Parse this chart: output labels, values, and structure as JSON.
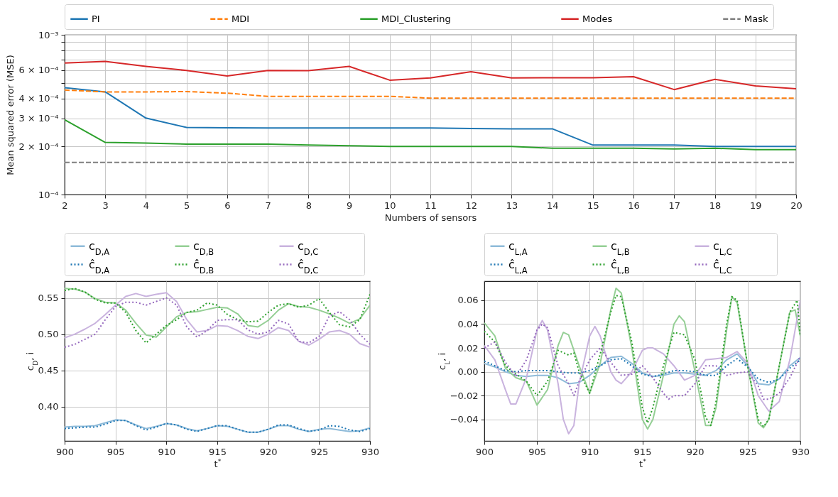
{
  "chart_data": [
    {
      "type": "line",
      "xlabel": "Numbers of sensors",
      "ylabel": "Mean squared error (MSE)",
      "log": "y",
      "grid": true,
      "legend": "top",
      "x": [
        2,
        3,
        4,
        5,
        6,
        7,
        8,
        9,
        10,
        11,
        12,
        13,
        14,
        15,
        16,
        17,
        18,
        19,
        20
      ],
      "xlim": [
        2,
        20
      ],
      "xticks": [
        2,
        3,
        4,
        5,
        6,
        7,
        8,
        9,
        10,
        11,
        12,
        13,
        14,
        15,
        16,
        17,
        18,
        19,
        20
      ],
      "ylim": [
        0.0001,
        0.001
      ],
      "yticks": [
        {
          "value": 0.0001,
          "label": "10⁻⁴"
        },
        {
          "value": 0.0002,
          "label": "2 × 10⁻⁴"
        },
        {
          "value": 0.0003,
          "label": "3 × 10⁻⁴"
        },
        {
          "value": 0.0004,
          "label": "4 × 10⁻⁴"
        },
        {
          "value": 0.0005,
          "label": null
        },
        {
          "value": 0.0006,
          "label": "6 × 10⁻⁴"
        },
        {
          "value": 0.0007,
          "label": null
        },
        {
          "value": 0.0008,
          "label": null
        },
        {
          "value": 0.0009,
          "label": null
        },
        {
          "value": 0.001,
          "label": "10⁻³"
        }
      ],
      "series": [
        {
          "name": "PI",
          "color": "#1f77b4",
          "line_style": "solid",
          "values": [
            0.000467,
            0.000439,
            0.000301,
            0.000263,
            0.000262,
            0.000261,
            0.000261,
            0.000261,
            0.000261,
            0.000261,
            0.000259,
            0.000258,
            0.000258,
            0.000204,
            0.000204,
            0.000204,
            0.0002,
            0.0002,
            0.0002
          ]
        },
        {
          "name": "MDI",
          "color": "#ff7f0e",
          "line_style": "dashed",
          "values": [
            0.000451,
            0.000439,
            0.000439,
            0.000441,
            0.000431,
            0.000412,
            0.000412,
            0.000412,
            0.000412,
            0.000401,
            0.000401,
            0.000401,
            0.000401,
            0.000401,
            0.000401,
            0.000401,
            0.000401,
            0.000401,
            0.000401
          ]
        },
        {
          "name": "MDI_Clustering",
          "color": "#2ca02c",
          "line_style": "solid",
          "values": [
            0.000294,
            0.000212,
            0.00021,
            0.000207,
            0.000207,
            0.000207,
            0.000204,
            0.000202,
            0.0002,
            0.0002,
            0.0002,
            0.0002,
            0.000195,
            0.000195,
            0.000195,
            0.000193,
            0.000195,
            0.000191,
            0.000191
          ]
        },
        {
          "name": "Modes",
          "color": "#d62728",
          "line_style": "solid",
          "values": [
            0.000665,
            0.000681,
            0.000634,
            0.000598,
            0.000553,
            0.000598,
            0.000597,
            0.000634,
            0.00052,
            0.000537,
            0.000587,
            0.000537,
            0.000539,
            0.000539,
            0.000547,
            0.000454,
            0.000526,
            0.000479,
            0.000459
          ]
        },
        {
          "name": "Mask",
          "color": "#7f7f7f",
          "line_style": "dashed",
          "values": [
            0.000159,
            0.000159,
            0.000159,
            0.000159,
            0.000159,
            0.000159,
            0.000159,
            0.000159,
            0.000159,
            0.000159,
            0.000159,
            0.000159,
            0.000159,
            0.000159,
            0.000159,
            0.000159,
            0.000159,
            0.000159,
            0.000159
          ]
        }
      ]
    },
    {
      "type": "line",
      "xlabel": "t$^{*}$",
      "ylabel": "c$_{D}$, i",
      "grid": true,
      "legend": "top",
      "x": [
        900,
        901,
        902,
        903,
        904,
        905,
        906,
        907,
        908,
        909,
        910,
        911,
        912,
        913,
        914,
        915,
        916,
        917,
        918,
        919,
        920,
        921,
        922,
        923,
        924,
        925,
        926,
        927,
        928,
        929,
        930
      ],
      "xlim": [
        900,
        930
      ],
      "xticks": [
        900,
        905,
        910,
        915,
        920,
        925,
        930
      ],
      "ylim": [
        0.353,
        0.573
      ],
      "yticks": [
        {
          "value": 0.4,
          "label": "0.40"
        },
        {
          "value": 0.45,
          "label": "0.45"
        },
        {
          "value": 0.5,
          "label": "0.50"
        },
        {
          "value": 0.55,
          "label": "0.55"
        }
      ],
      "series": [
        {
          "name": "c$_{D,A}$",
          "color": "#8fbbd9",
          "line_style": "solid",
          "values": [
            0.372,
            0.373,
            0.373,
            0.374,
            0.378,
            0.382,
            0.381,
            0.375,
            0.37,
            0.373,
            0.377,
            0.375,
            0.37,
            0.367,
            0.37,
            0.374,
            0.373,
            0.369,
            0.365,
            0.365,
            0.369,
            0.374,
            0.374,
            0.369,
            0.366,
            0.369,
            0.37,
            0.368,
            0.366,
            0.367,
            0.371
          ]
        },
        {
          "name": "c$_{D,B}$",
          "color": "#95cf95",
          "line_style": "solid",
          "values": [
            0.563,
            0.562,
            0.558,
            0.549,
            0.544,
            0.543,
            0.533,
            0.515,
            0.499,
            0.496,
            0.51,
            0.524,
            0.53,
            0.531,
            0.534,
            0.537,
            0.536,
            0.528,
            0.512,
            0.51,
            0.519,
            0.533,
            0.542,
            0.538,
            0.537,
            0.533,
            0.528,
            0.522,
            0.515,
            0.521,
            0.54
          ]
        },
        {
          "name": "c$_{D,C}$",
          "color": "#c9b3de",
          "line_style": "solid",
          "values": [
            0.495,
            0.5,
            0.507,
            0.515,
            0.527,
            0.54,
            0.552,
            0.556,
            0.552,
            0.555,
            0.557,
            0.545,
            0.52,
            0.503,
            0.505,
            0.512,
            0.511,
            0.505,
            0.497,
            0.494,
            0.5,
            0.509,
            0.505,
            0.49,
            0.485,
            0.493,
            0.503,
            0.505,
            0.5,
            0.487,
            0.482
          ]
        },
        {
          "name": "ĉ$_{D,A}$",
          "color": "#1f77b4",
          "line_style": "dotted",
          "values": [
            0.37,
            0.371,
            0.372,
            0.372,
            0.376,
            0.381,
            0.381,
            0.374,
            0.368,
            0.372,
            0.377,
            0.375,
            0.369,
            0.366,
            0.37,
            0.374,
            0.374,
            0.369,
            0.365,
            0.365,
            0.369,
            0.375,
            0.375,
            0.37,
            0.366,
            0.368,
            0.374,
            0.373,
            0.368,
            0.366,
            0.37
          ]
        },
        {
          "name": "ĉ$_{D,B}$",
          "color": "#2ca02c",
          "line_style": "dotted",
          "values": [
            0.56,
            0.563,
            0.558,
            0.548,
            0.543,
            0.543,
            0.53,
            0.505,
            0.488,
            0.5,
            0.512,
            0.52,
            0.53,
            0.533,
            0.543,
            0.54,
            0.527,
            0.52,
            0.517,
            0.518,
            0.53,
            0.54,
            0.542,
            0.537,
            0.54,
            0.549,
            0.53,
            0.513,
            0.51,
            0.52,
            0.555
          ]
        },
        {
          "name": "ĉ$_{D,C}$",
          "color": "#9467bd",
          "line_style": "dotted",
          "values": [
            0.482,
            0.486,
            0.493,
            0.5,
            0.52,
            0.538,
            0.544,
            0.544,
            0.54,
            0.545,
            0.55,
            0.54,
            0.51,
            0.496,
            0.505,
            0.519,
            0.52,
            0.52,
            0.506,
            0.5,
            0.503,
            0.519,
            0.514,
            0.49,
            0.488,
            0.497,
            0.525,
            0.531,
            0.52,
            0.5,
            0.486
          ]
        }
      ]
    },
    {
      "type": "line",
      "xlabel": "t$^{*}$",
      "ylabel": "c$_{L}$, i",
      "grid": true,
      "legend": "top",
      "x": [
        900,
        901,
        902,
        903,
        904,
        905,
        906,
        907,
        908,
        909,
        910,
        911,
        912,
        913,
        914,
        915,
        916,
        917,
        918,
        919,
        920,
        921,
        922,
        923,
        924,
        925,
        926,
        927,
        928,
        929,
        930
      ],
      "xlim": [
        900,
        930
      ],
      "xticks": [
        900,
        905,
        910,
        915,
        920,
        925,
        930
      ],
      "ylim": [
        -0.058,
        0.076
      ],
      "yticks": [
        {
          "value": -0.04,
          "label": "−0.04"
        },
        {
          "value": -0.02,
          "label": "−0.02"
        },
        {
          "value": 0,
          "label": "0.00"
        },
        {
          "value": 0.02,
          "label": "0.02"
        },
        {
          "value": 0.04,
          "label": "0.04"
        },
        {
          "value": 0.06,
          "label": "0.06"
        }
      ],
      "series": [
        {
          "name": "c$_{L,A}$",
          "color": "#8fbbd9",
          "line_style": "solid",
          "values": [
            0.007,
            0.004,
            0.0,
            -0.003,
            -0.004,
            -0.003,
            -0.003,
            -0.005,
            -0.01,
            -0.009,
            -0.003,
            0.005,
            0.012,
            0.013,
            0.007,
            -0.001,
            -0.004,
            -0.003,
            -0.001,
            -0.001,
            -0.002,
            -0.003,
            0.001,
            0.01,
            0.015,
            0.005,
            -0.01,
            -0.011,
            -0.006,
            0.005,
            0.012
          ]
        },
        {
          "name": "c$_{L,B}$",
          "color": "#95cf95",
          "line_style": "solid",
          "x": [
            900,
            901,
            902,
            903,
            904,
            905,
            906,
            907,
            907.5,
            908,
            909,
            910,
            911,
            912,
            912.5,
            913,
            914,
            915,
            915.5,
            916,
            917,
            918,
            918.5,
            919,
            920,
            921,
            921.5,
            922,
            923,
            923.5,
            924,
            925,
            926,
            926.5,
            927,
            928,
            929,
            929.5,
            930
          ],
          "values": [
            0.041,
            0.03,
            0.003,
            -0.005,
            -0.008,
            -0.028,
            -0.015,
            0.022,
            0.033,
            0.031,
            0.005,
            -0.018,
            0.007,
            0.052,
            0.07,
            0.066,
            0.02,
            -0.04,
            -0.048,
            -0.04,
            -0.003,
            0.04,
            0.047,
            0.042,
            0.0,
            -0.045,
            -0.045,
            -0.03,
            0.035,
            0.063,
            0.058,
            0.005,
            -0.043,
            -0.047,
            -0.04,
            0.005,
            0.05,
            0.052,
            0.03
          ]
        },
        {
          "name": "c$_{L,C}$",
          "color": "#c9b3de",
          "line_style": "solid",
          "x": [
            900,
            901,
            902,
            902.5,
            903,
            904,
            905,
            905.5,
            906,
            907,
            907.5,
            908,
            908.5,
            909,
            910,
            910.5,
            911,
            912,
            912.5,
            913,
            914,
            915,
            915.5,
            916,
            917,
            918,
            919,
            920,
            921,
            922,
            923,
            924,
            925,
            926,
            927,
            928,
            929,
            930
          ],
          "values": [
            0.022,
            0.01,
            -0.015,
            -0.027,
            -0.027,
            -0.005,
            0.035,
            0.043,
            0.035,
            -0.01,
            -0.04,
            -0.052,
            -0.045,
            -0.01,
            0.03,
            0.038,
            0.03,
            0.0,
            -0.007,
            -0.01,
            0.0,
            0.018,
            0.02,
            0.02,
            0.015,
            0.005,
            -0.007,
            -0.003,
            0.01,
            0.011,
            0.012,
            0.017,
            0.007,
            -0.02,
            -0.033,
            -0.025,
            0.01,
            0.06
          ]
        },
        {
          "name": "ĉ$_{L,A}$",
          "color": "#1f77b4",
          "line_style": "dotted",
          "values": [
            0.009,
            0.005,
            0.001,
            0.0,
            0.001,
            0.001,
            0.001,
            0.0,
            -0.001,
            -0.001,
            0.001,
            0.005,
            0.01,
            0.011,
            0.005,
            -0.002,
            -0.004,
            -0.002,
            0.001,
            0.001,
            0.0,
            -0.003,
            -0.003,
            0.005,
            0.011,
            0.004,
            -0.006,
            -0.009,
            -0.006,
            0.003,
            0.01
          ]
        },
        {
          "name": "ĉ$_{L,B}$",
          "color": "#2ca02c",
          "line_style": "dotted",
          "x": [
            900,
            901,
            902,
            903,
            904,
            905,
            906,
            907,
            908,
            908.5,
            909,
            910,
            911,
            912,
            912.5,
            913,
            914,
            915,
            915.5,
            916,
            917,
            918,
            919,
            920,
            921,
            921.5,
            922,
            923,
            923.5,
            924,
            925,
            926,
            926.5,
            927,
            928,
            929,
            929.7,
            930
          ],
          "values": [
            0.034,
            0.025,
            0.005,
            -0.002,
            -0.008,
            -0.02,
            -0.008,
            0.018,
            0.014,
            0.016,
            0.0,
            -0.018,
            0.015,
            0.05,
            0.064,
            0.063,
            0.025,
            -0.03,
            -0.043,
            -0.03,
            0.005,
            0.033,
            0.031,
            0.01,
            -0.038,
            -0.045,
            -0.025,
            0.04,
            0.063,
            0.06,
            0.005,
            -0.04,
            -0.046,
            -0.04,
            0.005,
            0.05,
            0.06,
            0.03
          ]
        },
        {
          "name": "ĉ$_{L,C}$",
          "color": "#9467bd",
          "line_style": "dotted",
          "x": [
            900,
            901,
            902,
            903,
            904,
            905,
            905.5,
            906,
            907,
            908,
            908.5,
            909,
            910,
            911,
            912,
            913,
            914,
            915,
            916,
            917,
            917.5,
            918,
            919,
            920,
            921,
            922,
            923,
            924,
            925,
            926,
            926.5,
            927,
            928,
            929,
            930
          ],
          "values": [
            0.02,
            0.025,
            0.008,
            -0.004,
            0.01,
            0.035,
            0.04,
            0.037,
            0.005,
            -0.01,
            -0.02,
            -0.008,
            0.01,
            0.02,
            0.008,
            -0.003,
            -0.002,
            0.005,
            -0.005,
            -0.018,
            -0.023,
            -0.02,
            -0.02,
            -0.01,
            0.005,
            0.005,
            -0.003,
            -0.001,
            0.0,
            -0.012,
            -0.023,
            -0.023,
            -0.018,
            -0.005,
            0.013
          ]
        }
      ]
    }
  ]
}
